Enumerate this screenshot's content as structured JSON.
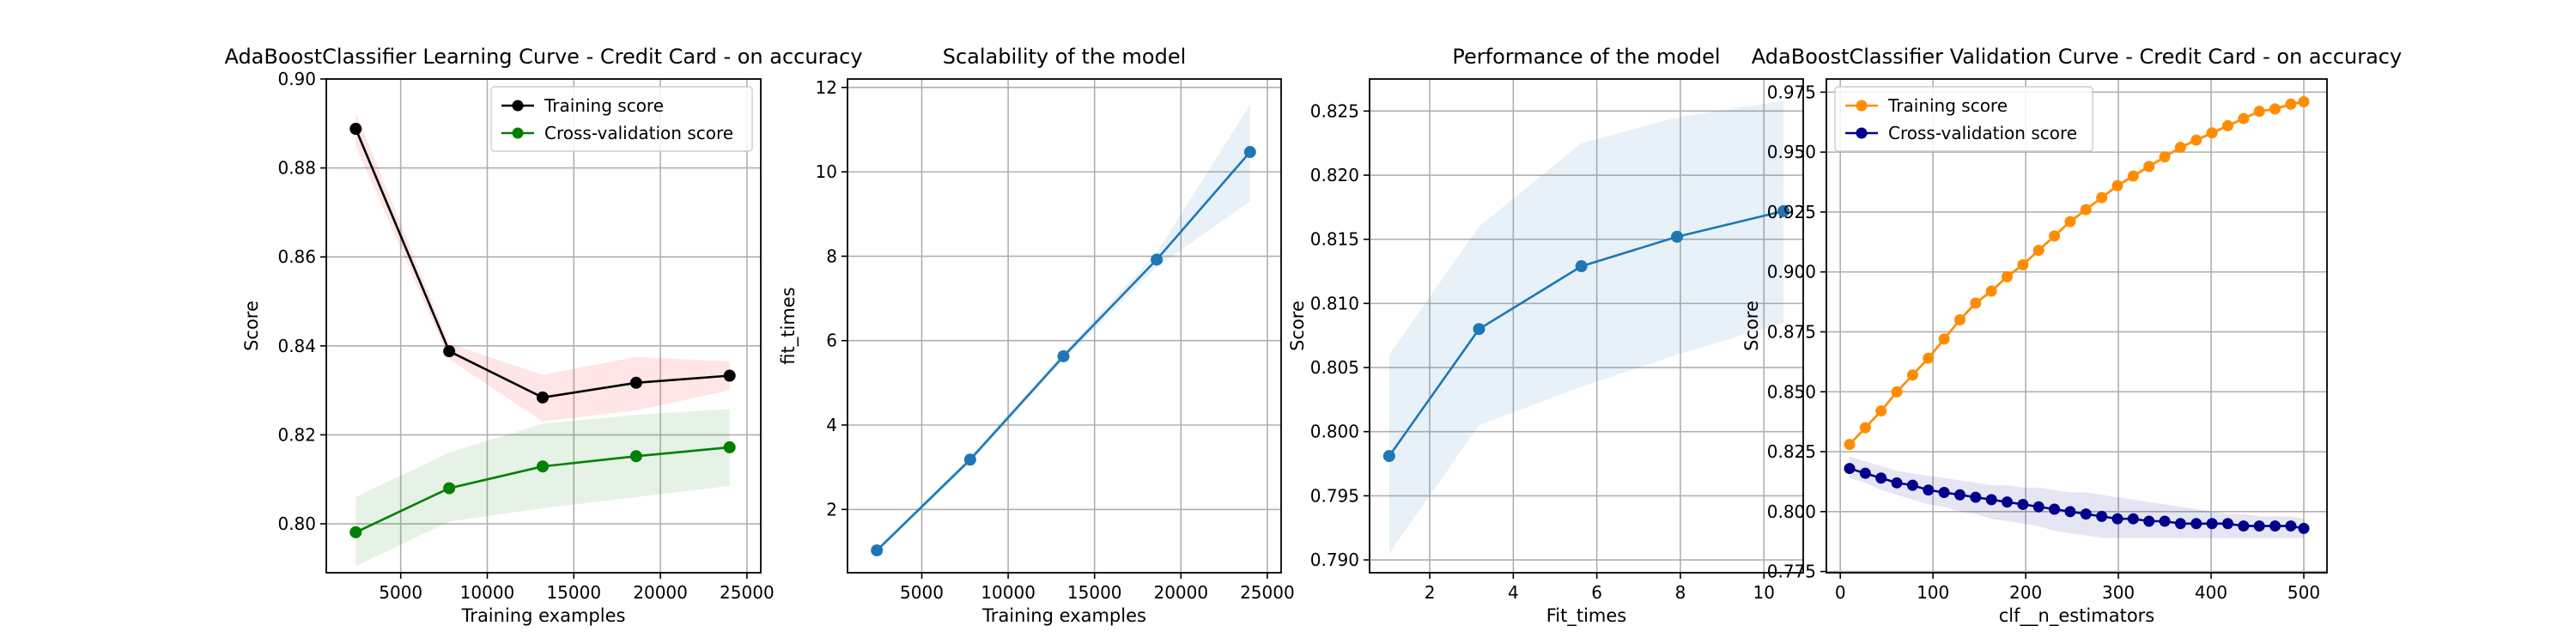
{
  "chart_data": [
    {
      "type": "line",
      "title": "AdaBoostClassifier Learning Curve - Credit Card - on accuracy",
      "xlabel": "Training examples",
      "ylabel": "Score",
      "xlim": [
        700,
        25800
      ],
      "ylim": [
        0.789,
        0.9
      ],
      "xticks": [
        5000,
        10000,
        15000,
        20000,
        25000
      ],
      "yticks": [
        0.8,
        0.82,
        0.84,
        0.86,
        0.88,
        0.9
      ],
      "ytick_format": 2,
      "grid": true,
      "legend": "upper-right",
      "series": [
        {
          "name": "Training score",
          "color": "#000000",
          "band_color": "#ff0000",
          "x": [
            2400,
            7800,
            13200,
            18600,
            24000
          ],
          "values": [
            0.8888,
            0.8388,
            0.8284,
            0.8317,
            0.8333
          ],
          "lower": [
            0.885,
            0.837,
            0.823,
            0.8255,
            0.83
          ],
          "upper": [
            0.8925,
            0.8405,
            0.8335,
            0.8375,
            0.8365
          ]
        },
        {
          "name": "Cross-validation score",
          "color": "#008000",
          "band_color": "#008000",
          "x": [
            2400,
            7800,
            13200,
            18600,
            24000
          ],
          "values": [
            0.7981,
            0.808,
            0.8129,
            0.8152,
            0.8172
          ],
          "lower": [
            0.7905,
            0.8005,
            0.8035,
            0.806,
            0.8085
          ],
          "upper": [
            0.806,
            0.816,
            0.8225,
            0.8245,
            0.8258
          ]
        }
      ]
    },
    {
      "type": "line",
      "title": "Scalability of the model",
      "xlabel": "Training examples",
      "ylabel": "fit_times",
      "xlim": [
        700,
        25800
      ],
      "ylim": [
        0.5,
        12.2
      ],
      "xticks": [
        5000,
        10000,
        15000,
        20000,
        25000
      ],
      "yticks": [
        2,
        4,
        6,
        8,
        10,
        12
      ],
      "ytick_format": 0,
      "grid": true,
      "legend": "none",
      "series": [
        {
          "color": "#1f77b4",
          "band_color": "#1f77b4",
          "x": [
            2400,
            7800,
            13200,
            18600,
            24000
          ],
          "values": [
            1.03,
            3.18,
            5.63,
            7.92,
            10.47
          ],
          "lower": [
            0.98,
            3.1,
            5.55,
            7.75,
            9.3
          ],
          "upper": [
            1.08,
            3.25,
            5.72,
            8.08,
            11.6
          ]
        }
      ]
    },
    {
      "type": "line",
      "title": "Performance of the model",
      "xlabel": "Fit_times",
      "ylabel": "Score",
      "xlim": [
        0.56,
        10.94
      ],
      "ylim": [
        0.789,
        0.8275
      ],
      "xticks": [
        2,
        4,
        6,
        8,
        10
      ],
      "yticks": [
        0.79,
        0.795,
        0.8,
        0.805,
        0.81,
        0.815,
        0.82,
        0.825
      ],
      "ytick_format": 3,
      "grid": true,
      "legend": "none",
      "series": [
        {
          "color": "#1f77b4",
          "band_color": "#1f77b4",
          "x": [
            1.03,
            3.18,
            5.63,
            7.92,
            10.47
          ],
          "values": [
            0.7981,
            0.808,
            0.8129,
            0.8152,
            0.8172
          ],
          "lower": [
            0.7905,
            0.8005,
            0.8035,
            0.806,
            0.8085
          ],
          "upper": [
            0.806,
            0.816,
            0.8225,
            0.8245,
            0.8258
          ]
        }
      ]
    },
    {
      "type": "line",
      "title": "AdaBoostClassifier Validation Curve - Credit Card - on accuracy",
      "xlabel": "clf__n_estimators",
      "ylabel": "Score",
      "xlim": [
        -15,
        525
      ],
      "ylim": [
        0.7745,
        0.9805
      ],
      "xticks": [
        0,
        100,
        200,
        300,
        400,
        500
      ],
      "yticks": [
        0.775,
        0.8,
        0.825,
        0.85,
        0.875,
        0.9,
        0.925,
        0.95,
        0.975
      ],
      "ytick_format": 3,
      "grid": true,
      "legend": "upper-left",
      "series": [
        {
          "name": "Training score",
          "color": "#ff8c00",
          "band_color": "#ff8c00",
          "marker_size": 6.5,
          "x": [
            10,
            27,
            44,
            61,
            78,
            95,
            112,
            129,
            146,
            163,
            180,
            197,
            214,
            231,
            248,
            265,
            282,
            299,
            316,
            333,
            350,
            367,
            384,
            401,
            418,
            435,
            452,
            469,
            486,
            500
          ],
          "values": [
            0.828,
            0.835,
            0.842,
            0.85,
            0.857,
            0.864,
            0.872,
            0.88,
            0.887,
            0.892,
            0.898,
            0.903,
            0.909,
            0.915,
            0.921,
            0.926,
            0.931,
            0.936,
            0.94,
            0.944,
            0.948,
            0.952,
            0.955,
            0.958,
            0.961,
            0.964,
            0.967,
            0.968,
            0.97,
            0.971
          ],
          "lower": [
            0.827,
            0.834,
            0.841,
            0.849,
            0.856,
            0.863,
            0.871,
            0.879,
            0.886,
            0.891,
            0.897,
            0.902,
            0.908,
            0.914,
            0.92,
            0.925,
            0.93,
            0.935,
            0.939,
            0.943,
            0.947,
            0.951,
            0.954,
            0.957,
            0.96,
            0.963,
            0.966,
            0.967,
            0.969,
            0.97
          ],
          "upper": [
            0.829,
            0.836,
            0.843,
            0.851,
            0.858,
            0.865,
            0.873,
            0.881,
            0.888,
            0.893,
            0.899,
            0.904,
            0.91,
            0.916,
            0.922,
            0.927,
            0.932,
            0.937,
            0.941,
            0.945,
            0.949,
            0.953,
            0.956,
            0.959,
            0.962,
            0.965,
            0.968,
            0.969,
            0.971,
            0.972
          ]
        },
        {
          "name": "Cross-validation score",
          "color": "#00008b",
          "band_color": "#00008b",
          "marker_size": 6.5,
          "x": [
            10,
            27,
            44,
            61,
            78,
            95,
            112,
            129,
            146,
            163,
            180,
            197,
            214,
            231,
            248,
            265,
            282,
            299,
            316,
            333,
            350,
            367,
            384,
            401,
            418,
            435,
            452,
            469,
            486,
            500
          ],
          "values": [
            0.818,
            0.816,
            0.814,
            0.812,
            0.811,
            0.809,
            0.808,
            0.807,
            0.806,
            0.805,
            0.804,
            0.803,
            0.802,
            0.801,
            0.8,
            0.799,
            0.798,
            0.797,
            0.797,
            0.796,
            0.796,
            0.795,
            0.795,
            0.795,
            0.795,
            0.794,
            0.794,
            0.794,
            0.794,
            0.793
          ],
          "lower": [
            0.814,
            0.812,
            0.809,
            0.807,
            0.805,
            0.803,
            0.802,
            0.8,
            0.799,
            0.797,
            0.796,
            0.795,
            0.794,
            0.792,
            0.791,
            0.79,
            0.789,
            0.789,
            0.789,
            0.789,
            0.789,
            0.789,
            0.789,
            0.789,
            0.789,
            0.789,
            0.789,
            0.789,
            0.789,
            0.789
          ],
          "upper": [
            0.823,
            0.821,
            0.819,
            0.817,
            0.816,
            0.815,
            0.814,
            0.813,
            0.812,
            0.811,
            0.811,
            0.81,
            0.81,
            0.809,
            0.808,
            0.808,
            0.807,
            0.806,
            0.805,
            0.804,
            0.803,
            0.802,
            0.801,
            0.8,
            0.799,
            0.799,
            0.798,
            0.798,
            0.798,
            0.797
          ]
        }
      ]
    }
  ]
}
